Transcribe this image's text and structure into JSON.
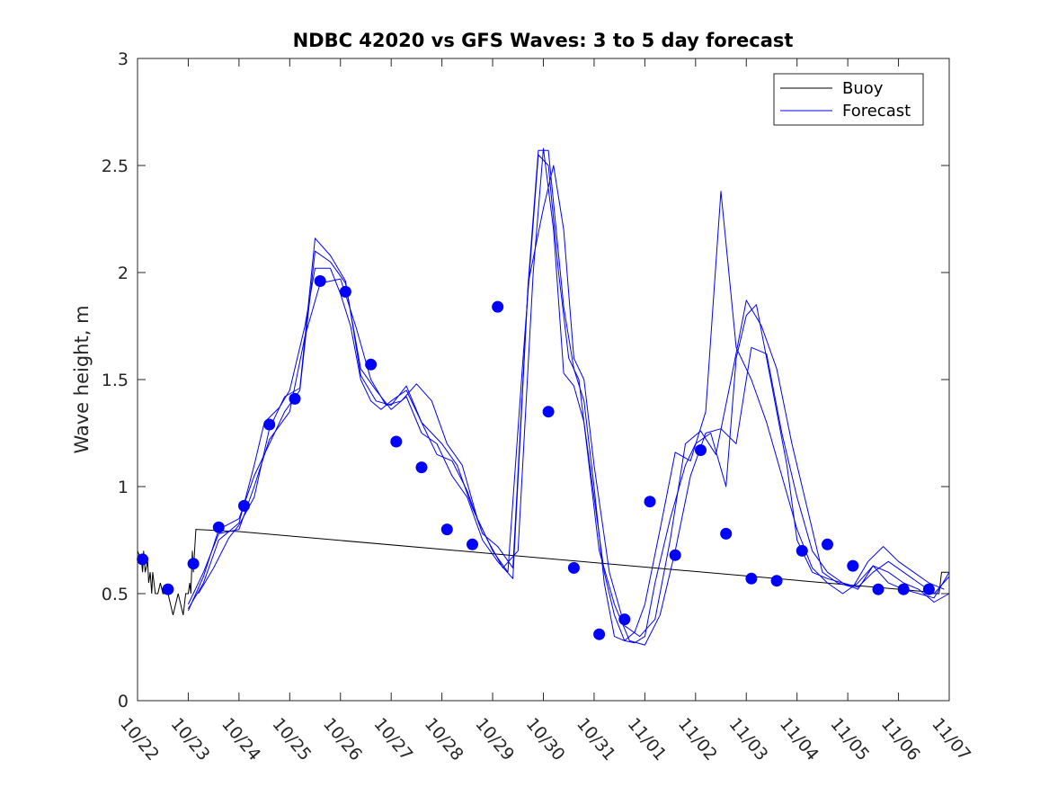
{
  "chart_data": {
    "type": "line",
    "title": "NDBC 42020 vs GFS Waves: 3 to 5 day forecast",
    "xlabel": "",
    "ylabel": "Wave height, m",
    "xlim": [
      0,
      16
    ],
    "ylim": [
      0,
      3
    ],
    "x_ticks": [
      0,
      1,
      2,
      3,
      4,
      5,
      6,
      7,
      8,
      9,
      10,
      11,
      12,
      13,
      14,
      15,
      16
    ],
    "x_tick_labels": [
      "10/22",
      "10/23",
      "10/24",
      "10/25",
      "10/26",
      "10/27",
      "10/28",
      "10/29",
      "10/30",
      "10/31",
      "11/01",
      "11/02",
      "11/03",
      "11/04",
      "11/05",
      "11/06",
      "11/07"
    ],
    "y_ticks": [
      0,
      0.5,
      1,
      1.5,
      2,
      2.5,
      3
    ],
    "y_tick_labels": [
      "0",
      "0.5",
      "1",
      "1.5",
      "2",
      "2.5",
      "3"
    ],
    "legend": {
      "position": "top-right",
      "entries": [
        {
          "name": "Buoy",
          "color": "#000000"
        },
        {
          "name": "Forecast",
          "color": "#0000ff"
        }
      ]
    },
    "colors": {
      "buoy": "#000000",
      "forecast": "#0000ff",
      "analysis": "#0000ff"
    },
    "buoy_series": {
      "name": "Buoy",
      "x": [
        0.0,
        0.08,
        0.1,
        0.12,
        0.15,
        0.2,
        0.22,
        0.25,
        0.28,
        0.3,
        0.35,
        0.4,
        0.45,
        0.5,
        0.55,
        0.6,
        0.7,
        0.8,
        0.9,
        0.95,
        1.0,
        1.03,
        1.05,
        1.08,
        1.1,
        1.15,
        2.0,
        15.5,
        15.6,
        15.7,
        15.8,
        15.85,
        15.9,
        16.0
      ],
      "y": [
        0.7,
        0.65,
        0.6,
        0.7,
        0.6,
        0.65,
        0.55,
        0.6,
        0.5,
        0.6,
        0.5,
        0.5,
        0.55,
        0.5,
        0.5,
        0.5,
        0.4,
        0.5,
        0.4,
        0.5,
        0.5,
        0.55,
        0.5,
        0.7,
        0.6,
        0.8,
        0.79,
        0.51,
        0.5,
        0.5,
        0.5,
        0.6,
        0.6,
        0.6
      ]
    },
    "forecast_series": [
      {
        "name": "Forecast",
        "x": [
          1.0,
          1.3,
          1.6,
          2.0,
          2.3,
          2.5,
          2.8,
          3.0,
          3.3,
          3.5,
          3.8,
          4.0,
          4.2,
          4.4,
          4.6,
          4.8,
          5.0,
          5.3,
          5.6,
          6.0,
          6.3,
          6.6,
          6.9,
          7.2,
          7.5,
          7.8,
          8.0,
          8.2,
          8.4,
          8.6,
          8.8,
          9.0,
          9.2,
          9.4,
          9.6,
          9.8,
          10.0,
          10.2,
          10.5,
          10.8,
          11.0,
          11.3,
          11.6,
          11.8,
          12.0,
          12.2,
          12.4,
          12.6,
          12.8,
          13.0,
          13.3,
          13.6,
          13.9,
          14.2,
          14.5,
          14.8,
          15.1,
          15.4,
          15.7,
          16.0
        ],
        "y": [
          0.43,
          0.55,
          0.75,
          0.83,
          1.1,
          1.3,
          1.37,
          1.45,
          1.75,
          2.02,
          2.02,
          1.9,
          1.75,
          1.5,
          1.4,
          1.36,
          1.4,
          1.45,
          1.3,
          1.2,
          1.1,
          0.9,
          0.75,
          0.62,
          0.7,
          2.0,
          2.58,
          2.2,
          1.53,
          1.47,
          1.3,
          0.95,
          0.6,
          0.4,
          0.28,
          0.27,
          0.3,
          0.55,
          0.85,
          1.1,
          1.2,
          1.25,
          1.0,
          1.6,
          1.8,
          1.85,
          1.6,
          1.35,
          1.1,
          0.75,
          0.6,
          0.57,
          0.55,
          0.52,
          0.63,
          0.6,
          0.55,
          0.52,
          0.46,
          0.5
        ]
      },
      {
        "name": "Forecast",
        "x": [
          1.0,
          1.3,
          1.6,
          2.0,
          2.3,
          2.6,
          3.0,
          3.3,
          3.6,
          4.0,
          4.3,
          4.6,
          4.9,
          5.2,
          5.5,
          5.8,
          6.1,
          6.4,
          6.7,
          7.0,
          7.3,
          7.6,
          7.9,
          8.1,
          8.3,
          8.5,
          8.7,
          8.9,
          9.1,
          9.4,
          9.7,
          10.0,
          10.3,
          10.6,
          10.9,
          11.2,
          11.5,
          11.8,
          12.1,
          12.4,
          12.7,
          13.0,
          13.3,
          13.6,
          13.9,
          14.2,
          14.5,
          14.8,
          15.1,
          15.4,
          15.7,
          16.0
        ],
        "y": [
          0.45,
          0.6,
          0.78,
          0.8,
          1.0,
          1.22,
          1.35,
          1.7,
          1.95,
          1.97,
          1.75,
          1.5,
          1.38,
          1.4,
          1.48,
          1.4,
          1.2,
          1.1,
          0.85,
          0.7,
          0.6,
          1.6,
          2.55,
          2.5,
          2.0,
          1.6,
          1.5,
          1.1,
          0.7,
          0.45,
          0.28,
          0.26,
          0.4,
          0.7,
          1.05,
          1.25,
          1.27,
          1.2,
          1.65,
          1.62,
          1.25,
          0.95,
          0.7,
          0.6,
          0.55,
          0.53,
          0.6,
          0.65,
          0.6,
          0.55,
          0.5,
          0.58
        ]
      },
      {
        "name": "Forecast",
        "x": [
          1.0,
          1.3,
          1.6,
          2.0,
          2.3,
          2.6,
          2.9,
          3.2,
          3.5,
          3.8,
          4.1,
          4.4,
          4.7,
          5.0,
          5.3,
          5.6,
          5.9,
          6.2,
          6.5,
          6.8,
          7.1,
          7.4,
          7.7,
          8.0,
          8.2,
          8.4,
          8.6,
          8.8,
          9.0,
          9.3,
          9.6,
          9.9,
          10.2,
          10.5,
          10.8,
          11.1,
          11.4,
          11.7,
          12.0,
          12.3,
          12.6,
          12.9,
          13.2,
          13.5,
          13.8,
          14.1,
          14.4,
          14.7,
          15.0,
          15.3,
          15.6,
          15.9
        ],
        "y": [
          0.42,
          0.58,
          0.8,
          0.85,
          1.05,
          1.2,
          1.35,
          1.45,
          2.1,
          2.05,
          1.95,
          1.55,
          1.45,
          1.36,
          1.42,
          1.25,
          1.2,
          1.05,
          0.95,
          0.75,
          0.65,
          0.57,
          1.95,
          2.3,
          2.5,
          2.2,
          1.6,
          1.5,
          1.1,
          0.6,
          0.35,
          0.3,
          0.38,
          0.75,
          1.2,
          1.26,
          1.15,
          1.5,
          1.87,
          1.75,
          1.55,
          1.2,
          0.9,
          0.6,
          0.55,
          0.53,
          0.65,
          0.72,
          0.65,
          0.6,
          0.55,
          0.52
        ]
      },
      {
        "name": "Forecast",
        "x": [
          1.2,
          1.5,
          1.8,
          2.0,
          2.3,
          2.6,
          2.9,
          3.2,
          3.5,
          3.8,
          4.1,
          4.4,
          4.7,
          5.0,
          5.3,
          5.6,
          5.9,
          6.2,
          6.5,
          6.8,
          7.1,
          7.4,
          7.7,
          7.9,
          8.1,
          8.4,
          8.6,
          8.8,
          9.0,
          9.2,
          9.4,
          9.6,
          9.8,
          10.0,
          10.3,
          10.6,
          10.9,
          11.2,
          11.5,
          11.8,
          12.1,
          12.4,
          12.7,
          13.0,
          13.3,
          13.6,
          13.9,
          14.2,
          14.5,
          14.8,
          15.1,
          15.4,
          15.7,
          16.0
        ],
        "y": [
          0.5,
          0.62,
          0.76,
          0.82,
          0.95,
          1.27,
          1.42,
          1.46,
          2.16,
          2.08,
          1.96,
          1.52,
          1.4,
          1.38,
          1.47,
          1.3,
          1.15,
          1.12,
          0.98,
          0.78,
          0.72,
          0.62,
          1.95,
          2.57,
          2.57,
          1.84,
          1.55,
          1.4,
          1.0,
          0.55,
          0.3,
          0.28,
          0.32,
          0.45,
          0.8,
          1.16,
          1.12,
          1.35,
          2.38,
          1.65,
          1.5,
          1.3,
          1.05,
          0.8,
          0.62,
          0.55,
          0.5,
          0.55,
          0.63,
          0.55,
          0.52,
          0.5,
          0.48,
          0.6
        ]
      }
    ],
    "analysis_points": {
      "name": "Forecast points",
      "x": [
        0.1,
        0.6,
        1.1,
        1.6,
        2.1,
        2.6,
        3.1,
        3.6,
        4.1,
        4.6,
        5.1,
        5.6,
        6.1,
        6.6,
        7.1,
        8.1,
        8.6,
        9.1,
        9.6,
        10.1,
        10.6,
        11.1,
        11.6,
        12.1,
        12.6,
        13.1,
        13.6,
        14.1,
        14.6,
        15.1,
        15.6
      ],
      "y": [
        0.66,
        0.52,
        0.64,
        0.81,
        0.91,
        1.29,
        1.41,
        1.96,
        1.91,
        1.57,
        1.21,
        1.09,
        0.8,
        0.73,
        1.84,
        1.35,
        0.62,
        0.31,
        0.38,
        0.93,
        0.68,
        1.17,
        0.78,
        0.57,
        0.56,
        0.7,
        0.73,
        0.63,
        0.52,
        0.52,
        0.52
      ]
    }
  }
}
